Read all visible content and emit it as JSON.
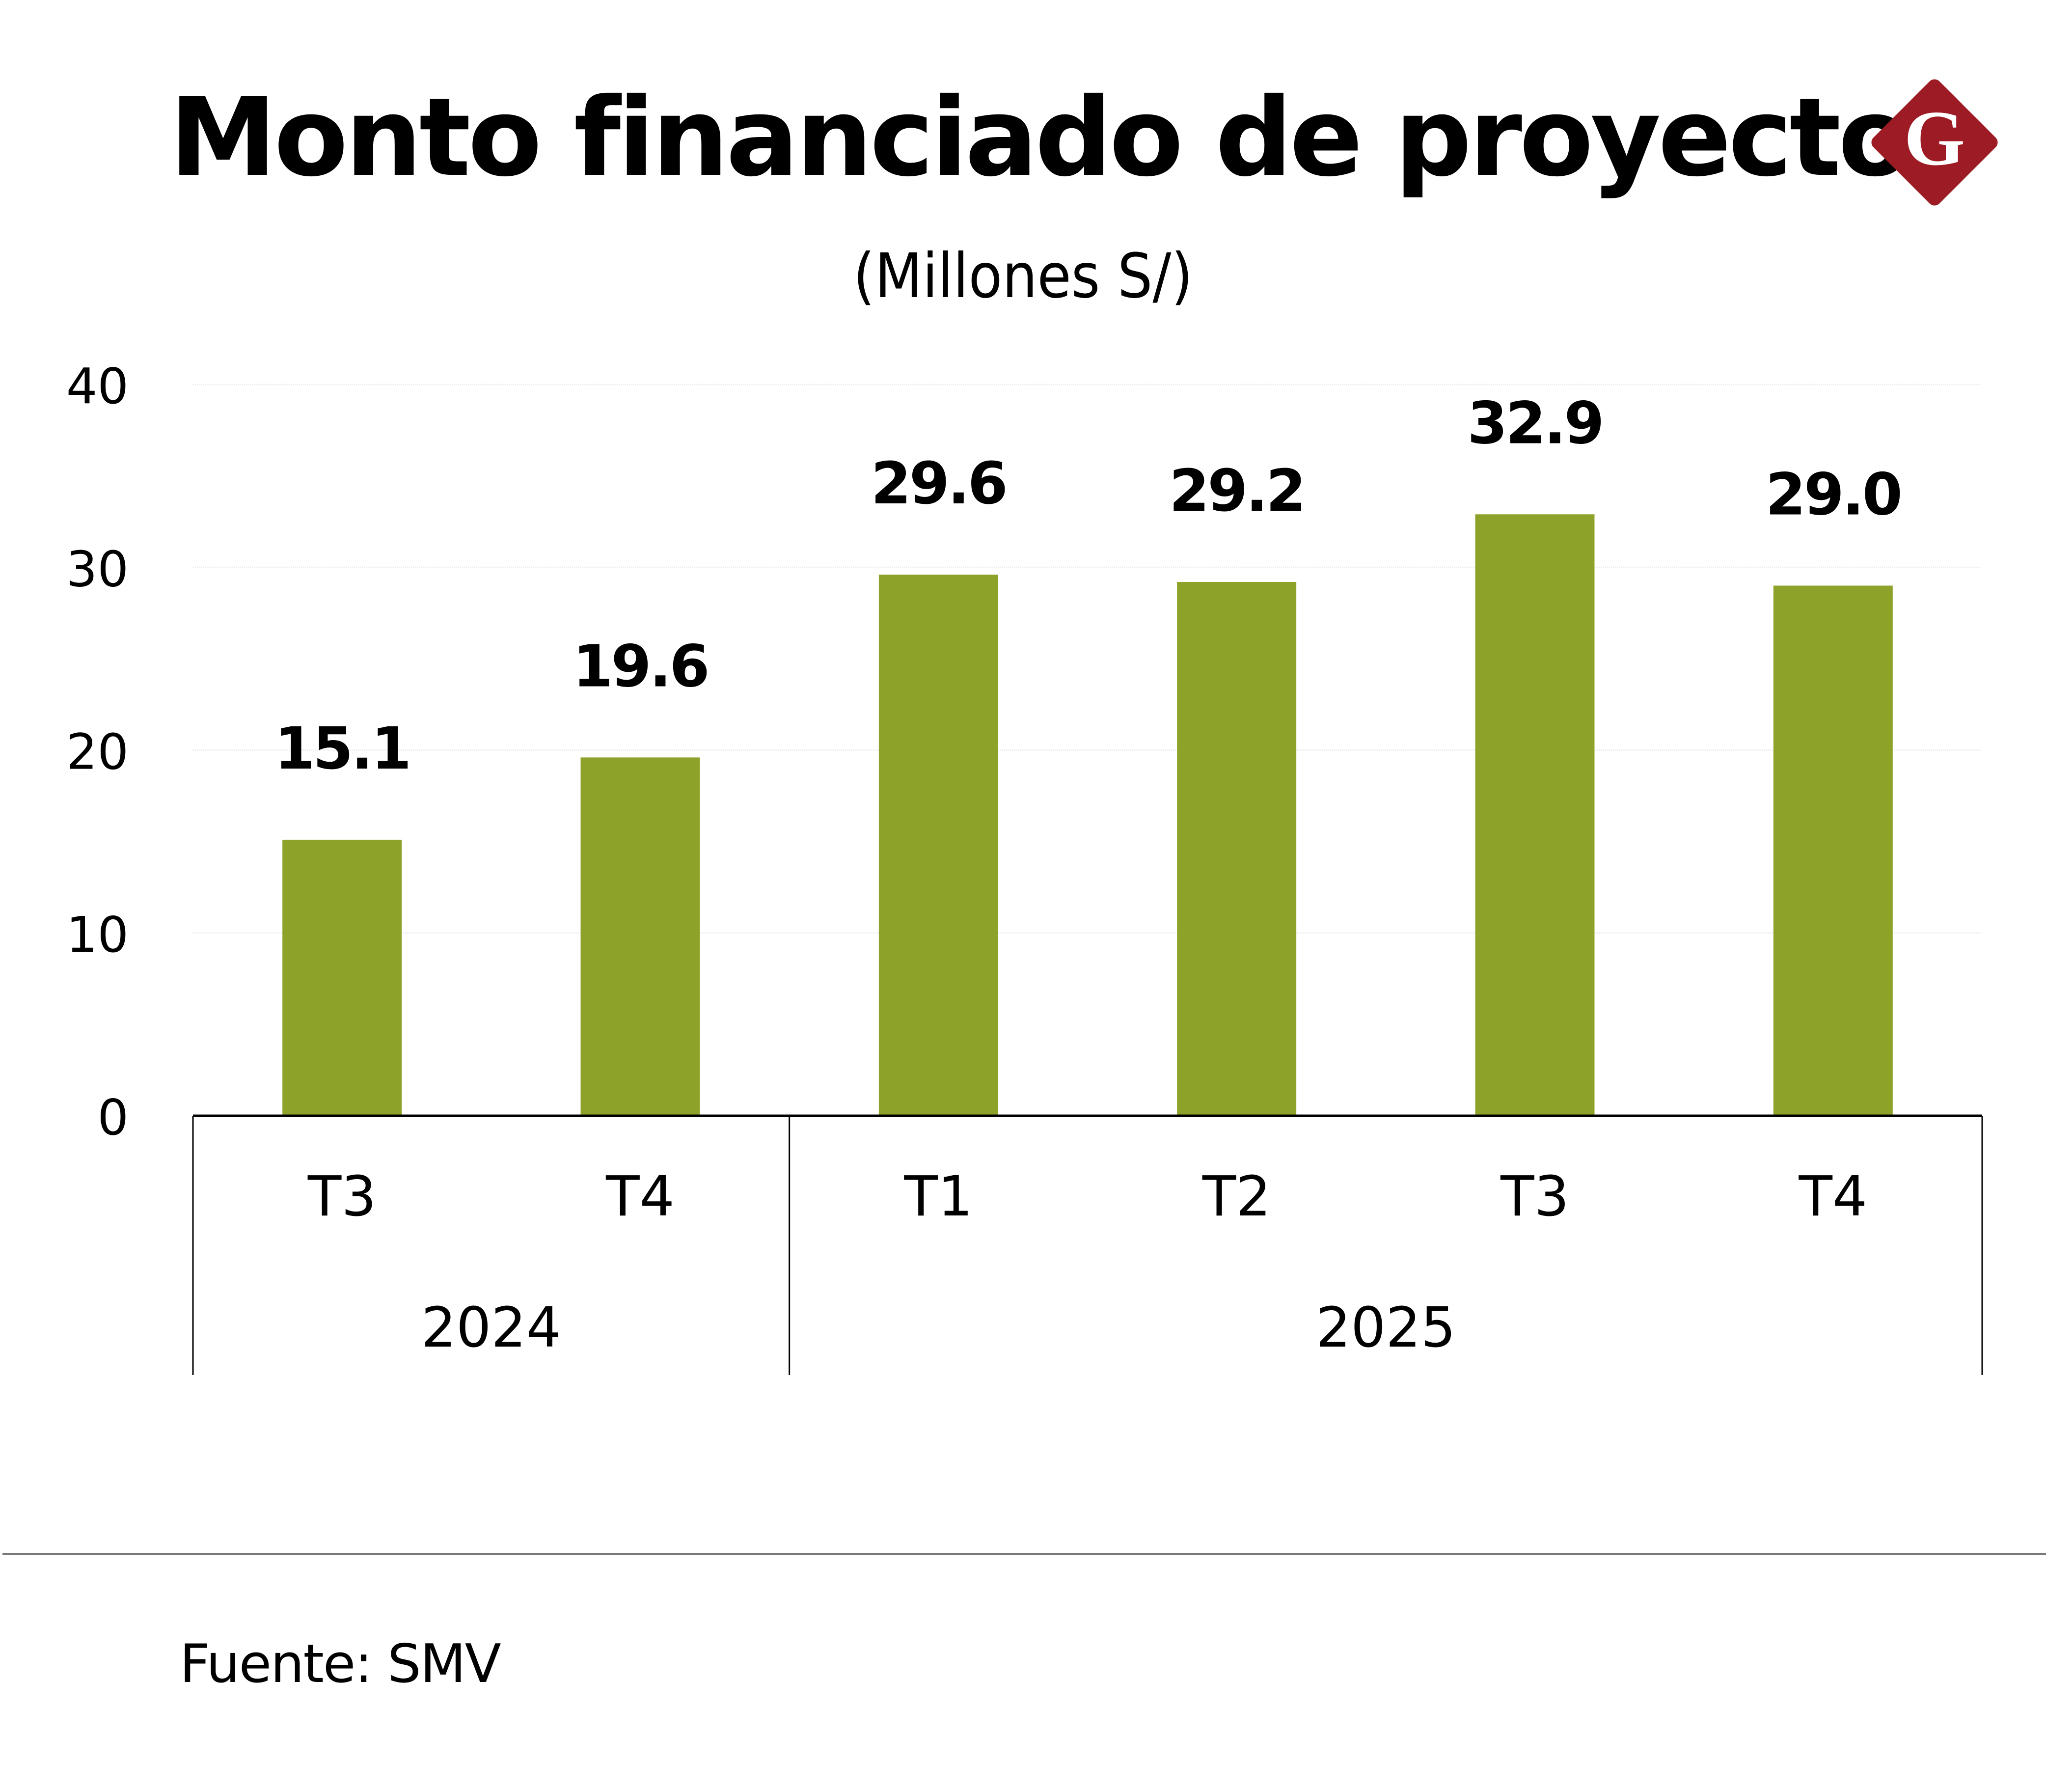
{
  "header": {
    "title": "Monto financiado de proyectos",
    "subtitle": "(Millones S/)",
    "logo_letter": "G",
    "logo_color": "#9c1b24"
  },
  "footer": {
    "source": "Fuente: SMV"
  },
  "chart_data": {
    "type": "bar",
    "title": "Monto financiado de proyectos",
    "subtitle": "(Millones S/)",
    "xlabel": "",
    "ylabel": "Millones S/",
    "ylim": [
      0,
      40
    ],
    "yticks": [
      0,
      10,
      20,
      30,
      40
    ],
    "grid": true,
    "legend": "none",
    "bar_color": "#8ca229",
    "categories": [
      "T3",
      "T4",
      "T1",
      "T2",
      "T3",
      "T4"
    ],
    "groups": [
      {
        "label": "2024",
        "categories": [
          "T3",
          "T4"
        ]
      },
      {
        "label": "2025",
        "categories": [
          "T1",
          "T2",
          "T3",
          "T4"
        ]
      }
    ],
    "values": [
      15.1,
      19.6,
      29.6,
      29.2,
      32.9,
      29.0
    ],
    "value_labels": [
      "15.1",
      "19.6",
      "29.6",
      "29.2",
      "32.9",
      "29.0"
    ]
  }
}
